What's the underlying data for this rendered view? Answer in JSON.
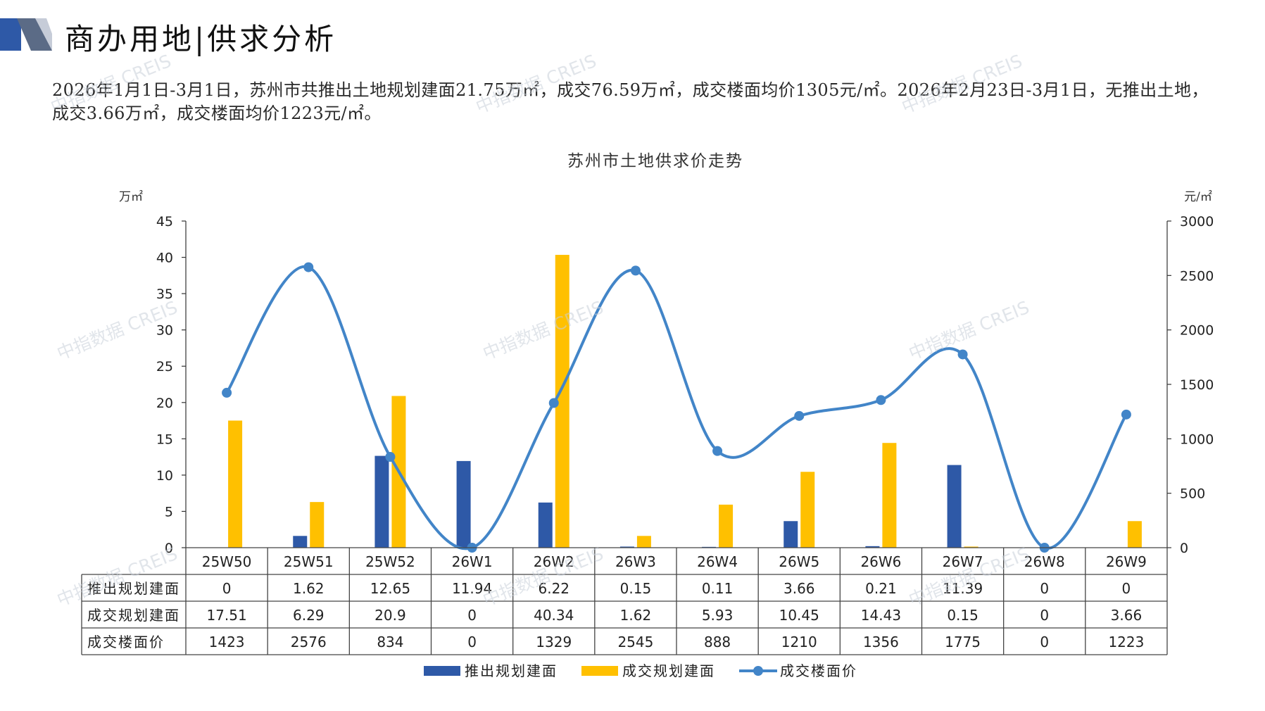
{
  "header": {
    "title": "商办用地|供求分析"
  },
  "summary": "2026年1月1日-3月1日，苏州市共推出土地规划建面21.75万㎡，成交76.59万㎡，成交楼面均价1305元/㎡。2026年2月23日-3月1日，无推出土地，成交3.66万㎡，成交楼面均价1223元/㎡。",
  "watermark": "中指数据 CREIS",
  "colors": {
    "supply": "#2e59a7",
    "transaction": "#ffc000",
    "price": "#4285c8",
    "text": "#1a1a1a",
    "grid": "#333333"
  },
  "chart_data": {
    "type": "bar",
    "title": "苏州市土地供求价走势",
    "ylabel_left": "万㎡",
    "ylabel_right": "元/㎡",
    "ylim_left": [
      0,
      45
    ],
    "ylim_right": [
      0,
      3000
    ],
    "yticks_left": [
      0,
      5,
      10,
      15,
      20,
      25,
      30,
      35,
      40,
      45
    ],
    "yticks_right": [
      0,
      500,
      1000,
      1500,
      2000,
      2500,
      3000
    ],
    "categories": [
      "25W50",
      "25W51",
      "25W52",
      "26W1",
      "26W2",
      "26W3",
      "26W4",
      "26W5",
      "26W6",
      "26W7",
      "26W8",
      "26W9"
    ],
    "series": [
      {
        "name": "推出规划建面",
        "type": "bar",
        "axis": "left",
        "values": [
          0,
          1.62,
          12.65,
          11.94,
          6.22,
          0.15,
          0.11,
          3.66,
          0.21,
          11.39,
          0,
          0
        ],
        "labels": [
          "0",
          "1.62",
          "12.65",
          "11.94",
          "6.22",
          "0.15",
          "0.11",
          "3.66",
          "0.21",
          "11.39",
          "0",
          "0"
        ]
      },
      {
        "name": "成交规划建面",
        "type": "bar",
        "axis": "left",
        "values": [
          17.51,
          6.29,
          20.9,
          0,
          40.34,
          1.62,
          5.93,
          10.45,
          14.43,
          0.15,
          0,
          3.66
        ],
        "labels": [
          "17.51",
          "6.29",
          "20.9",
          "0",
          "40.34",
          "1.62",
          "5.93",
          "10.45",
          "14.43",
          "0.15",
          "0",
          "3.66"
        ]
      },
      {
        "name": "成交楼面价",
        "type": "line",
        "axis": "right",
        "smooth": true,
        "values": [
          1423,
          2576,
          834,
          0,
          1329,
          2545,
          888,
          1210,
          1356,
          1775,
          0,
          1223
        ],
        "labels": [
          "1423",
          "2576",
          "834",
          "0",
          "1329",
          "2545",
          "888",
          "1210",
          "1356",
          "1775",
          "0",
          "1223"
        ]
      }
    ],
    "legend_position": "bottom",
    "data_table": true
  }
}
